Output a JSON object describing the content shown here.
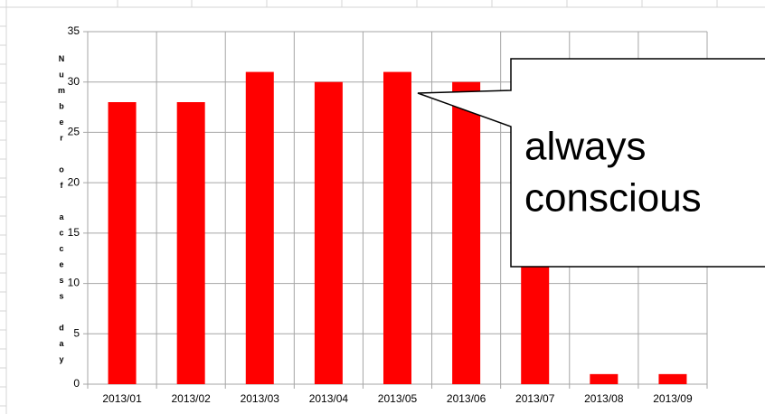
{
  "chart_data": {
    "type": "bar",
    "ylabel": "Number of access day",
    "annotation": [
      "always",
      "conscious"
    ],
    "categories": [
      "2013/01",
      "2013/02",
      "2013/03",
      "2013/04",
      "2013/05",
      "2013/06",
      "2013/07",
      "2013/08",
      "2013/09"
    ],
    "values": [
      28,
      28,
      31,
      30,
      31,
      30,
      31,
      1,
      1
    ],
    "color": "#ff0000",
    "ylim": [
      0,
      35
    ],
    "yticks": [
      0,
      5,
      10,
      15,
      20,
      25,
      30,
      35
    ],
    "grid": true
  }
}
